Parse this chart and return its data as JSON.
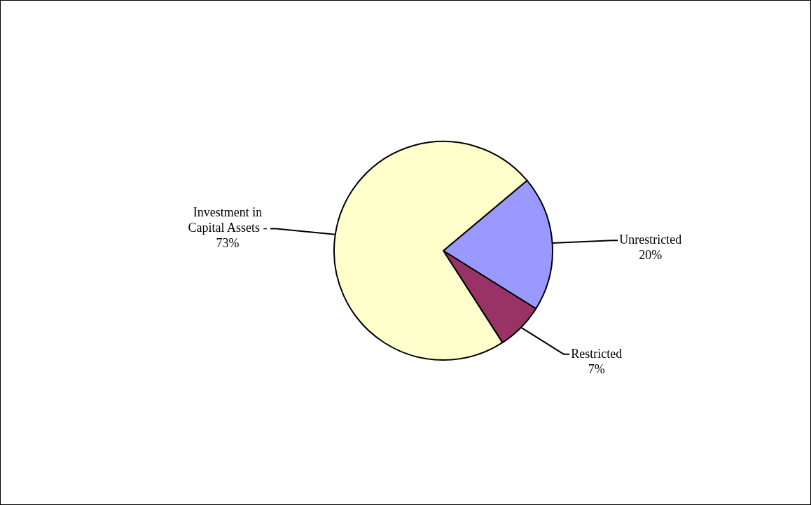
{
  "chart_data": {
    "type": "pie",
    "categories": [
      "Unrestricted",
      "Restricted",
      "Investment in Capital Assets -"
    ],
    "values": [
      20,
      7,
      73
    ],
    "value_labels": [
      "20%",
      "7%",
      "73%"
    ],
    "colors": [
      "#9999ff",
      "#993366",
      "#ffffcc"
    ],
    "legend": false
  }
}
